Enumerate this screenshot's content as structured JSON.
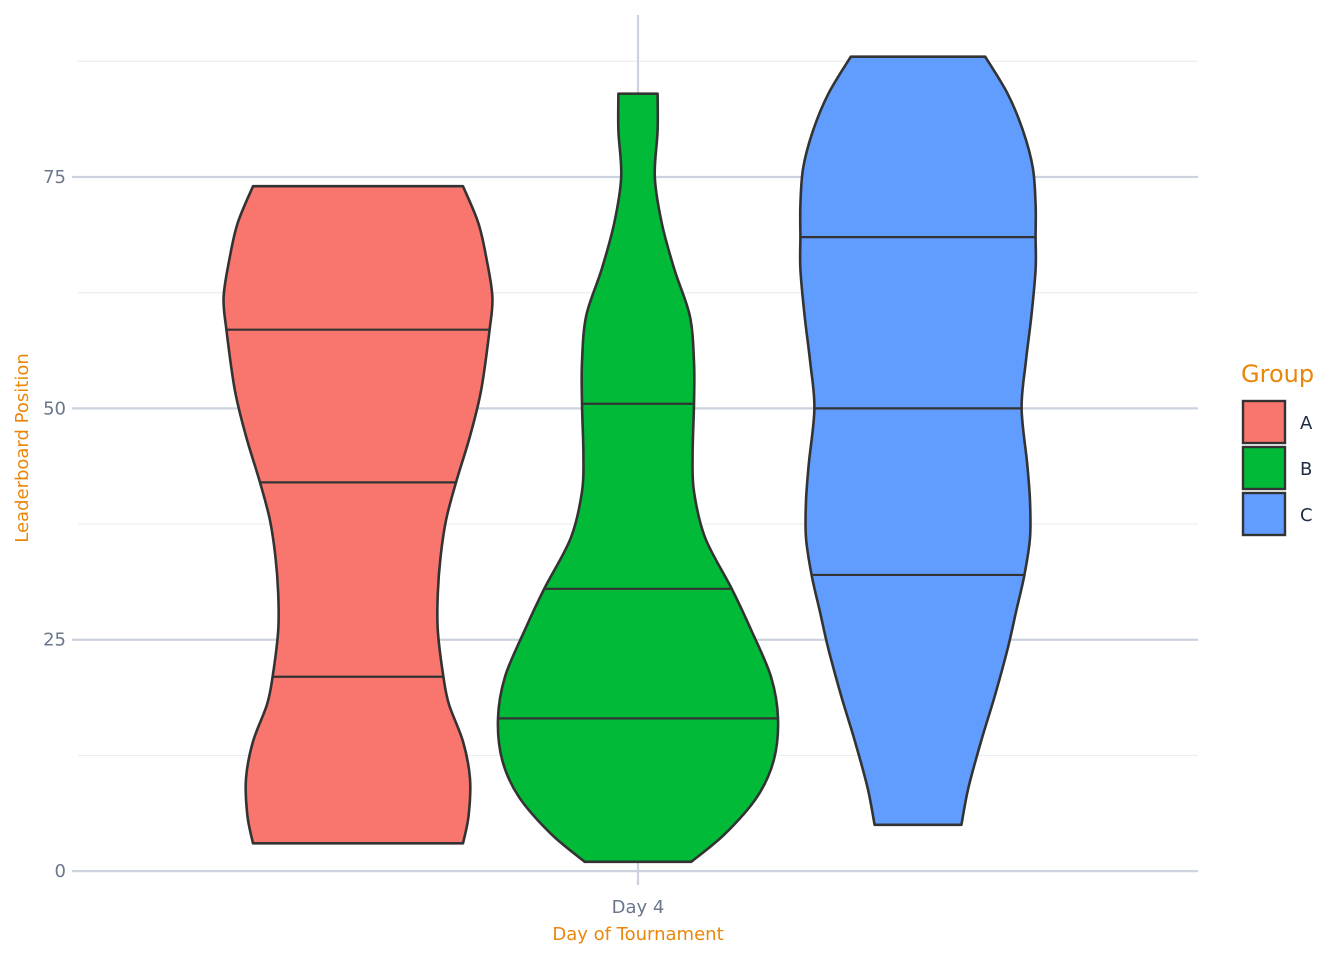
{
  "chart_data": {
    "type": "violin",
    "title": "",
    "xlabel": "Day of Tournament",
    "ylabel": "Leaderboard Position",
    "categories": [
      "Day 4"
    ],
    "yticks": [
      0,
      25,
      50,
      75
    ],
    "ylim": [
      -1.5,
      92.5
    ],
    "grid": true,
    "legend": {
      "title": "Group",
      "placement": "right"
    },
    "colors": {
      "A": "#F8766D",
      "B": "#00BA38",
      "C": "#619CFF",
      "outline": "#333333",
      "grid_major": "#cdd3de",
      "grid_minor": "#ebedf0"
    },
    "series": [
      {
        "name": "A",
        "min": 3,
        "max": 74,
        "quantiles": [
          21,
          42,
          58.5
        ],
        "density": [
          [
            3,
            0.75
          ],
          [
            6,
            0.79
          ],
          [
            10,
            0.8
          ],
          [
            14,
            0.75
          ],
          [
            18,
            0.65
          ],
          [
            21,
            0.61
          ],
          [
            26,
            0.57
          ],
          [
            30,
            0.57
          ],
          [
            34,
            0.59
          ],
          [
            38,
            0.63
          ],
          [
            42,
            0.7
          ],
          [
            47,
            0.8
          ],
          [
            52,
            0.88
          ],
          [
            58.5,
            0.94
          ],
          [
            62,
            0.96
          ],
          [
            66,
            0.92
          ],
          [
            70,
            0.86
          ],
          [
            74,
            0.75
          ]
        ]
      },
      {
        "name": "B",
        "min": 1,
        "max": 84,
        "quantiles": [
          16.5,
          30.5,
          50.5
        ],
        "density": [
          [
            1,
            0.38
          ],
          [
            4,
            0.62
          ],
          [
            8,
            0.85
          ],
          [
            12,
            0.97
          ],
          [
            16.5,
            1.0
          ],
          [
            21,
            0.95
          ],
          [
            26,
            0.81
          ],
          [
            30.5,
            0.67
          ],
          [
            36,
            0.48
          ],
          [
            41,
            0.4
          ],
          [
            45,
            0.39
          ],
          [
            50.5,
            0.4
          ],
          [
            55,
            0.4
          ],
          [
            60,
            0.37
          ],
          [
            65,
            0.26
          ],
          [
            70,
            0.17
          ],
          [
            75,
            0.12
          ],
          [
            80,
            0.14
          ],
          [
            84,
            0.14
          ]
        ]
      },
      {
        "name": "C",
        "min": 5,
        "max": 88,
        "quantiles": [
          32,
          50,
          68.5
        ],
        "density": [
          [
            5,
            0.31
          ],
          [
            9,
            0.36
          ],
          [
            14,
            0.45
          ],
          [
            19,
            0.55
          ],
          [
            24,
            0.64
          ],
          [
            28,
            0.7
          ],
          [
            32,
            0.76
          ],
          [
            36,
            0.8
          ],
          [
            40,
            0.8
          ],
          [
            44,
            0.78
          ],
          [
            50,
            0.74
          ],
          [
            55,
            0.77
          ],
          [
            60,
            0.81
          ],
          [
            65,
            0.84
          ],
          [
            68.5,
            0.84
          ],
          [
            72,
            0.84
          ],
          [
            76,
            0.82
          ],
          [
            80,
            0.75
          ],
          [
            84,
            0.64
          ],
          [
            88,
            0.48
          ]
        ]
      }
    ]
  }
}
